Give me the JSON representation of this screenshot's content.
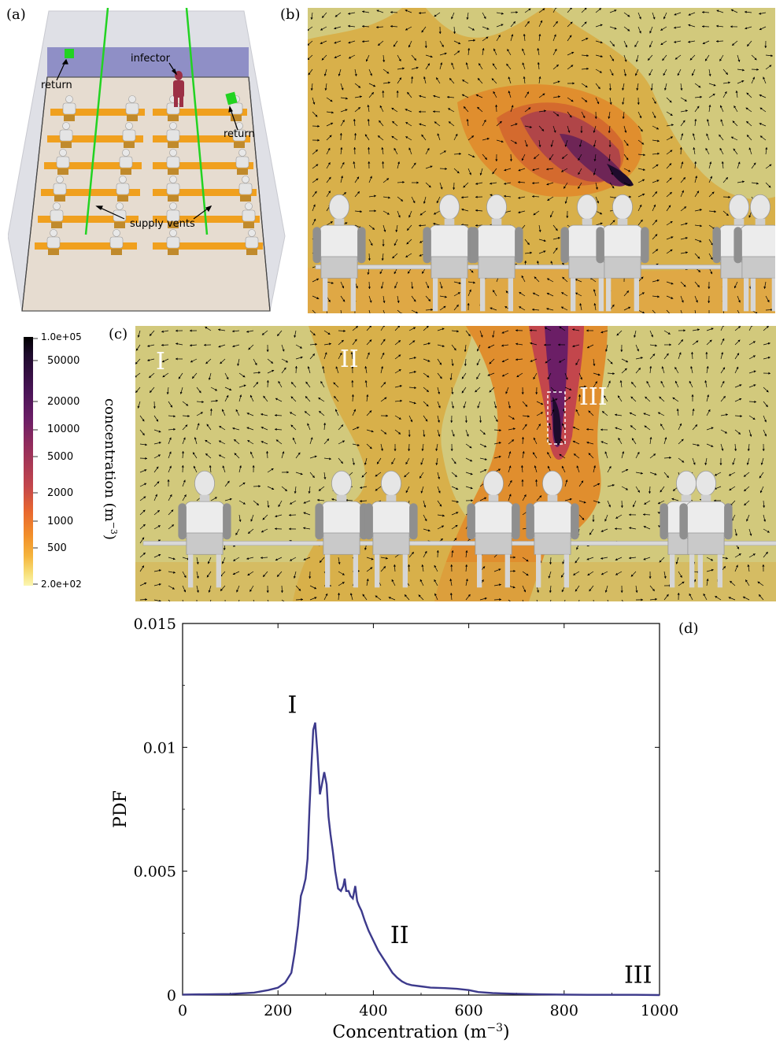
{
  "panels": {
    "a": "(a)",
    "b": "(b)",
    "c": "(c)",
    "d": "(d)"
  },
  "room": {
    "infector": "infector",
    "return_left": "return",
    "return_right": "return",
    "supply": "supply vents"
  },
  "colors": {
    "wall": "#dfe0e6",
    "back_wall": "#8f8fc6",
    "floor": "#e6dcd0",
    "vent": "#22d322",
    "desk": "#f0a01e",
    "infector": "#9c3045",
    "line": "#3d3a8c",
    "field_light": "#d2c97c",
    "field_mid": "#d8b04a",
    "field_orange": "#e08e2e",
    "field_dark": "#7a2a52"
  },
  "field_c_regions": {
    "r1": "I",
    "r2": "II",
    "r3": "III"
  },
  "colorbar": {
    "title": "concentration (m",
    "title_sup": "−3",
    "title_end": ")",
    "ticks": [
      "1.0e+05",
      "50000",
      "20000",
      "10000",
      "5000",
      "2000",
      "1000",
      "500",
      "2.0e+02"
    ],
    "stops": [
      "#000000",
      "#2b0f3a",
      "#4a1457",
      "#6b1e66",
      "#942d5c",
      "#c3464c",
      "#e8672f",
      "#f2902a",
      "#f5b43c",
      "#f7e079",
      "#fbf6b2"
    ]
  },
  "chart_data": {
    "type": "line",
    "xlabel": "Concentration (m",
    "xlabel_sup": "−3",
    "xlabel_end": ")",
    "ylabel": "PDF",
    "xlim": [
      0,
      1000
    ],
    "ylim": [
      0,
      0.015
    ],
    "xticks": [
      "0",
      "200",
      "400",
      "600",
      "800",
      "1000"
    ],
    "yticks": [
      "0",
      "0.005",
      "0.01",
      "0.015"
    ],
    "annotations": [
      {
        "text": "I",
        "x": 230,
        "y": 0.0114
      },
      {
        "text": "II",
        "x": 455,
        "y": 0.0021
      },
      {
        "text": "III",
        "x": 955,
        "y": 0.0005
      }
    ],
    "series": [
      {
        "x": [
          0,
          100,
          150,
          180,
          200,
          215,
          228,
          235,
          242,
          248,
          253,
          258,
          262,
          266,
          270,
          274,
          278,
          283,
          288,
          292,
          297,
          302,
          306,
          310,
          315,
          320,
          326,
          332,
          337,
          340,
          343,
          348,
          352,
          357,
          362,
          366,
          370,
          375,
          382,
          390,
          400,
          410,
          420,
          430,
          440,
          450,
          460,
          470,
          480,
          500,
          520,
          550,
          575,
          600,
          620,
          650,
          700,
          750,
          800,
          850,
          900,
          950,
          1000
        ],
        "y": [
          2e-05,
          4e-05,
          0.0001,
          0.0002,
          0.0003,
          0.0005,
          0.0009,
          0.0017,
          0.0028,
          0.004,
          0.0043,
          0.0047,
          0.0055,
          0.0075,
          0.0092,
          0.0107,
          0.011,
          0.0097,
          0.0081,
          0.0085,
          0.009,
          0.0085,
          0.0072,
          0.0065,
          0.0058,
          0.005,
          0.0043,
          0.0042,
          0.0044,
          0.0047,
          0.0042,
          0.0042,
          0.004,
          0.0039,
          0.0044,
          0.0038,
          0.0036,
          0.0034,
          0.003,
          0.0026,
          0.0022,
          0.0018,
          0.0015,
          0.0012,
          0.0009,
          0.0007,
          0.00055,
          0.00045,
          0.0004,
          0.00035,
          0.0003,
          0.00028,
          0.00025,
          0.0002,
          0.00012,
          8e-05,
          5e-05,
          3e-05,
          2e-05,
          1e-05,
          1e-05,
          1e-05,
          0
        ]
      }
    ]
  }
}
